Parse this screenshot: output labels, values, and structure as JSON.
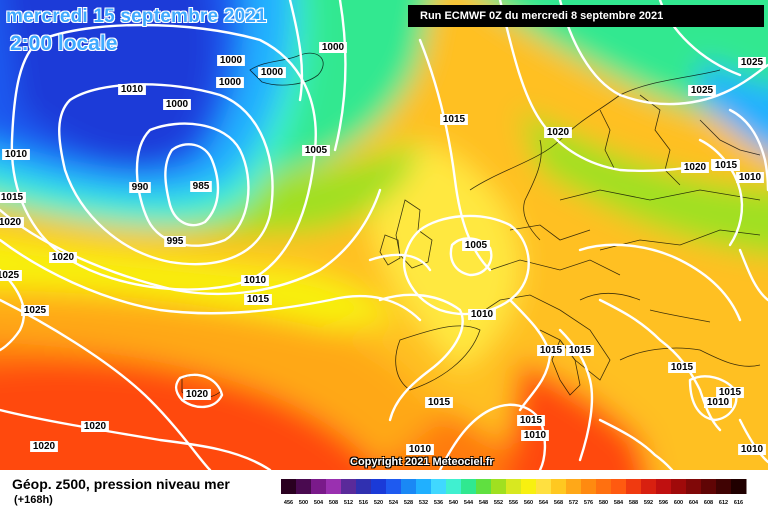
{
  "header": {
    "date": "mercredi 15 septembre 2021",
    "time": "2:00 locale",
    "run": "Run ECMWF 0Z du mercredi 8 septembre 2021"
  },
  "copyright": "Copyright 2021 Meteociel.fr",
  "footer": {
    "parameter": "Géop. z500, pression niveau mer",
    "lead_time": "(+168h)"
  },
  "colorscale": {
    "labels": [
      "456",
      "500",
      "504",
      "508",
      "512",
      "516",
      "520",
      "524",
      "528",
      "532",
      "536",
      "540",
      "544",
      "548",
      "552",
      "556",
      "560",
      "564",
      "568",
      "572",
      "576",
      "580",
      "584",
      "588",
      "592",
      "596",
      "600",
      "604",
      "608",
      "612",
      "616"
    ],
    "colors": [
      "#2a0020",
      "#4a0a50",
      "#7a1a8a",
      "#9a30b0",
      "#5a2a9a",
      "#3030b0",
      "#1a3ad8",
      "#1e5af0",
      "#1a88f5",
      "#20b0ff",
      "#40d8ff",
      "#40f0d0",
      "#30e890",
      "#60e040",
      "#a0e020",
      "#d8e820",
      "#f8f010",
      "#ffe040",
      "#ffc820",
      "#ffa818",
      "#ff8a10",
      "#ff7010",
      "#ff5a10",
      "#f03a10",
      "#d82010",
      "#c01010",
      "#a00a0a",
      "#800808",
      "#600505",
      "#400303",
      "#200000"
    ]
  },
  "isobar_labels": [
    {
      "text": "1000"
    },
    {
      "text": "1000"
    },
    {
      "text": "1000"
    },
    {
      "text": "1000"
    },
    {
      "text": "1000"
    },
    {
      "text": "1010"
    },
    {
      "text": "1010"
    },
    {
      "text": "990"
    },
    {
      "text": "985"
    },
    {
      "text": "995"
    },
    {
      "text": "1005"
    },
    {
      "text": "1015"
    },
    {
      "text": "1015"
    },
    {
      "text": "1020"
    },
    {
      "text": "1020"
    },
    {
      "text": "1025"
    },
    {
      "text": "1025"
    },
    {
      "text": "1010"
    },
    {
      "text": "1015"
    },
    {
      "text": "1020"
    },
    {
      "text": "1005"
    },
    {
      "text": "1010"
    },
    {
      "text": "1015"
    },
    {
      "text": "1015"
    },
    {
      "text": "1015"
    },
    {
      "text": "1015"
    },
    {
      "text": "1020"
    },
    {
      "text": "1020"
    },
    {
      "text": "1020"
    },
    {
      "text": "1015"
    },
    {
      "text": "1010"
    },
    {
      "text": "1015"
    },
    {
      "text": "1010"
    },
    {
      "text": "1025"
    },
    {
      "text": "1025"
    },
    {
      "text": "1020"
    },
    {
      "text": "1015"
    },
    {
      "text": "1010"
    },
    {
      "text": "1015"
    },
    {
      "text": "1010"
    },
    {
      "text": "1010"
    },
    {
      "text": "1010"
    }
  ]
}
